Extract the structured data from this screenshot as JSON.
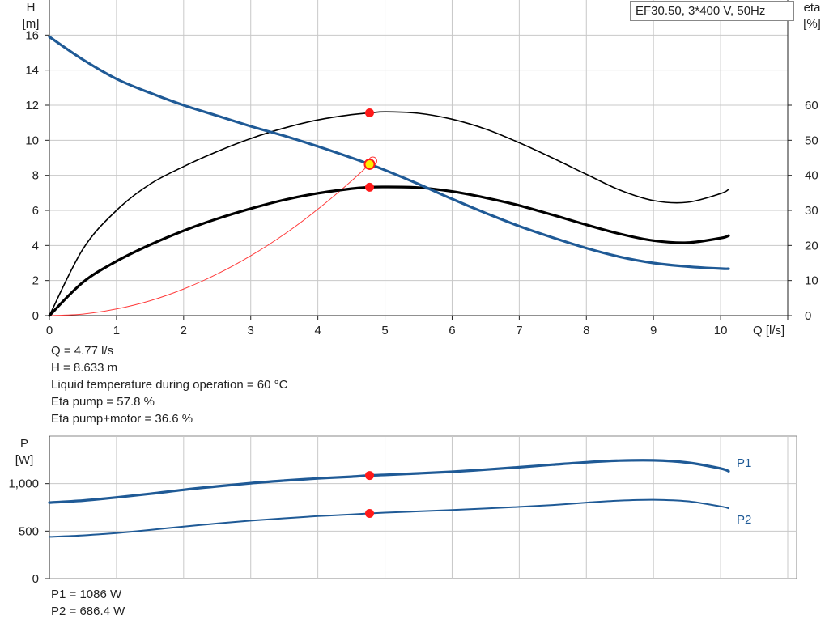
{
  "title": "EF30.50, 3*400 V, 50Hz",
  "info_top": [
    "Q = 4.77 l/s",
    "H = 8.633 m",
    "Liquid temperature during operation = 60 °C",
    "Eta pump = 57.8 %",
    "Eta pump+motor = 36.6 %"
  ],
  "info_bottom": [
    "P1 = 1086 W",
    "P2 = 686.4 W"
  ],
  "colors": {
    "head_curve": "#1f5a96",
    "efficiency_curves": "#000000",
    "system_curve": "#ff3b3b",
    "operating_point": "#ff1a1a",
    "operating_point_head": "#ffee00",
    "power_curves": "#1f5a96",
    "grid": "#c8c8c8"
  },
  "chart_data": [
    {
      "type": "line",
      "name": "head-efficiency",
      "x_axis": {
        "label": "Q [l/s]",
        "range": [
          0,
          11
        ],
        "ticks": [
          0,
          1,
          2,
          3,
          4,
          5,
          6,
          7,
          8,
          9,
          10
        ]
      },
      "y_axis_left": {
        "label_line1": "H",
        "label_line2": "[m]",
        "range": [
          0,
          18
        ],
        "ticks": [
          0,
          2,
          4,
          6,
          8,
          10,
          12,
          14,
          16
        ]
      },
      "y_axis_right": {
        "label_line1": "eta",
        "label_line2": "[%]",
        "range": [
          0,
          90
        ],
        "ticks": [
          0,
          10,
          20,
          30,
          40,
          50,
          60
        ]
      },
      "grid": true,
      "series": [
        {
          "name": "H",
          "axis": "left",
          "x": [
            0,
            0.5,
            1,
            1.5,
            2,
            2.5,
            3,
            3.5,
            4,
            4.5,
            4.77,
            5,
            5.5,
            6,
            6.5,
            7,
            7.5,
            8,
            8.5,
            9,
            9.5,
            10,
            10.12
          ],
          "y": [
            15.9,
            14.6,
            13.5,
            12.7,
            12.0,
            11.4,
            10.8,
            10.25,
            9.65,
            9.0,
            8.633,
            8.3,
            7.5,
            6.65,
            5.85,
            5.1,
            4.45,
            3.85,
            3.35,
            3.0,
            2.8,
            2.68,
            2.67
          ]
        },
        {
          "name": "Eta pump",
          "axis": "right",
          "x": [
            0,
            0.5,
            1,
            1.5,
            2,
            2.5,
            3,
            3.5,
            4,
            4.5,
            4.77,
            5,
            5.5,
            6,
            6.5,
            7,
            7.5,
            8,
            8.5,
            9,
            9.5,
            10,
            10.12
          ],
          "y": [
            0,
            19,
            30,
            37.5,
            42.5,
            46.8,
            50.5,
            53.5,
            55.8,
            57.3,
            57.8,
            58.1,
            57.7,
            56,
            53.2,
            49.3,
            44.9,
            40.3,
            35.8,
            32.8,
            32.3,
            34.8,
            36
          ]
        },
        {
          "name": "Eta pump+motor",
          "axis": "right",
          "x": [
            0,
            0.5,
            1,
            1.5,
            2,
            2.5,
            3,
            3.5,
            4,
            4.5,
            4.77,
            5,
            5.5,
            6,
            6.5,
            7,
            7.5,
            8,
            8.5,
            9,
            9.5,
            10,
            10.12
          ],
          "y": [
            0,
            9.5,
            15.5,
            20.2,
            24.2,
            27.6,
            30.5,
            33,
            34.9,
            36.2,
            36.6,
            36.7,
            36.5,
            35.4,
            33.6,
            31.4,
            28.7,
            25.9,
            23.3,
            21.4,
            20.8,
            22.1,
            22.8
          ]
        },
        {
          "name": "System",
          "axis": "left",
          "x": [
            0,
            0.5,
            1,
            1.5,
            2,
            2.5,
            3,
            3.5,
            4,
            4.5,
            4.77
          ],
          "y": [
            0,
            0.09,
            0.38,
            0.85,
            1.52,
            2.37,
            3.41,
            4.64,
            6.07,
            7.68,
            8.633
          ]
        }
      ],
      "operating_point": {
        "Q": 4.77,
        "H": 8.633,
        "eta_pump": 57.8,
        "eta_pump_motor": 36.6
      }
    },
    {
      "type": "line",
      "name": "power",
      "x_axis": {
        "range": [
          0,
          11
        ]
      },
      "y_axis": {
        "label_line1": "P",
        "label_line2": "[W]",
        "range": [
          0,
          1500
        ],
        "ticks": [
          0,
          500,
          1000
        ],
        "tick_labels": [
          "0",
          "500",
          "1,000"
        ]
      },
      "grid": true,
      "series": [
        {
          "name": "P1",
          "x": [
            0,
            0.5,
            1,
            1.5,
            2,
            2.5,
            3,
            3.5,
            4,
            4.5,
            4.77,
            5,
            5.5,
            6,
            6.5,
            7,
            7.5,
            8,
            8.5,
            9,
            9.5,
            10,
            10.12
          ],
          "y": [
            800,
            822,
            855,
            893,
            935,
            972,
            1005,
            1032,
            1055,
            1073,
            1086,
            1092,
            1108,
            1125,
            1148,
            1173,
            1200,
            1225,
            1243,
            1245,
            1222,
            1160,
            1130
          ]
        },
        {
          "name": "P2",
          "x": [
            0,
            0.5,
            1,
            1.5,
            2,
            2.5,
            3,
            3.5,
            4,
            4.5,
            4.77,
            5,
            5.5,
            6,
            6.5,
            7,
            7.5,
            8,
            8.5,
            9,
            9.5,
            10,
            10.12
          ],
          "y": [
            440,
            455,
            480,
            512,
            548,
            580,
            610,
            635,
            658,
            675,
            686.4,
            695,
            708,
            722,
            738,
            755,
            775,
            800,
            822,
            830,
            815,
            760,
            740
          ]
        }
      ],
      "operating_point": {
        "Q": 4.77,
        "P1": 1086,
        "P2": 686.4
      }
    }
  ]
}
